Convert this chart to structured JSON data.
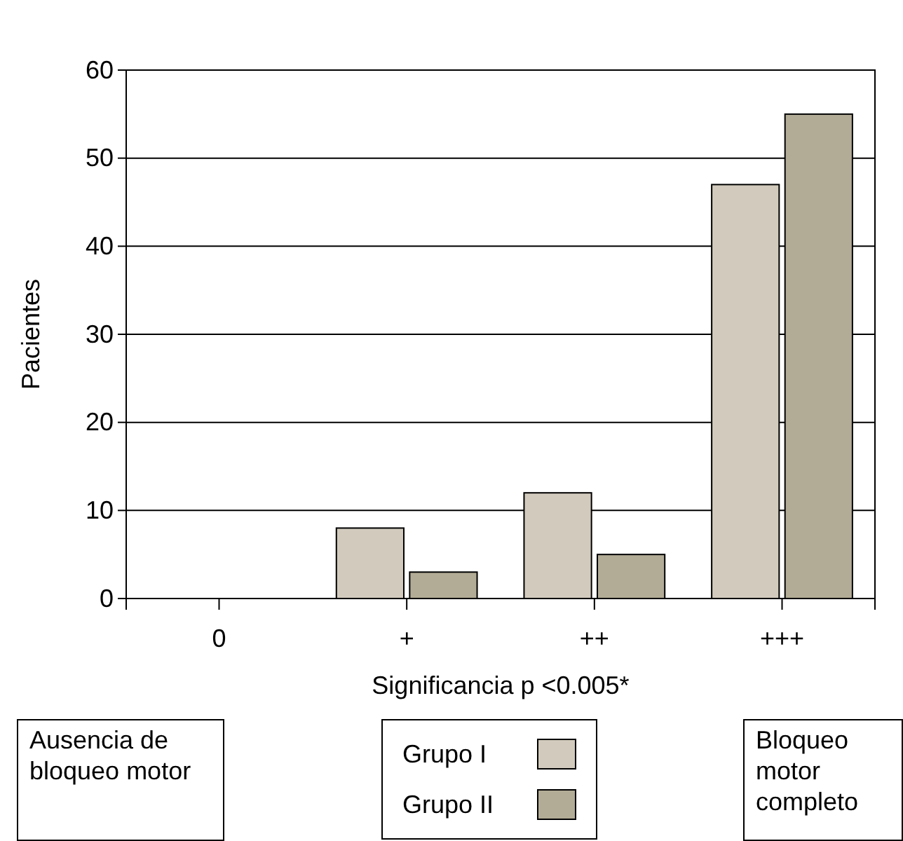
{
  "chart_data": {
    "type": "bar",
    "xlabel": "Significancia p <0.005*",
    "ylabel": "Pacientes",
    "categories": [
      "0",
      "+",
      "++",
      "+++"
    ],
    "series": [
      {
        "name": "Grupo I",
        "color": "#d2cbbd",
        "values": [
          0,
          8,
          12,
          47
        ]
      },
      {
        "name": "Grupo II",
        "color": "#b2ac96",
        "values": [
          0,
          3,
          5,
          55
        ]
      }
    ],
    "ylim": [
      0,
      60
    ],
    "yticks": [
      0,
      10,
      20,
      30,
      40,
      50,
      60
    ],
    "grid": "y",
    "legend": "bottom",
    "annotations": [
      "Ausencia de bloqueo motor",
      "Bloqueo motor completo"
    ]
  }
}
